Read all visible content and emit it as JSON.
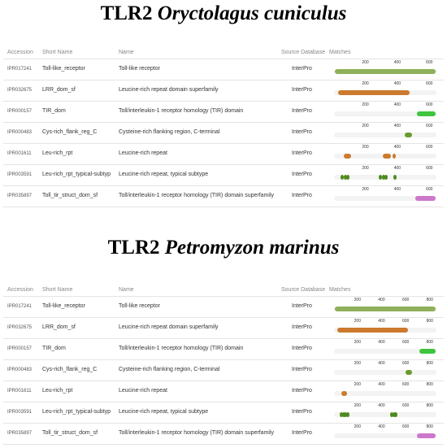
{
  "colors": {
    "olive": "#8fb05a",
    "orange": "#cc7a2e",
    "bright_green": "#3ec43e",
    "dark_green": "#6a9a2e",
    "leaf_green": "#4e8a1e",
    "magenta": "#cc77cc",
    "track": "#f3f3f3"
  },
  "header": {
    "accession": "Accession",
    "short_name": "Short Name",
    "name": "Name",
    "source_database": "Source Database",
    "matches": "Matches"
  },
  "panels": [
    {
      "title_gene": "TLR2",
      "title_species": "Oryctolagus cuniculus",
      "protein_length": 640,
      "tick_labels": [
        "200",
        "400",
        "600"
      ],
      "tick_values": [
        200,
        400,
        600
      ],
      "rows": [
        {
          "accession": "IPR017241",
          "short_name": "Toll-like_receptor",
          "name": "Toll-like receptor",
          "db": "InterPro",
          "color": "olive",
          "segments": [
            {
              "start": 5,
              "end": 635
            }
          ],
          "dots": []
        },
        {
          "accession": "IPR032675",
          "short_name": "LRR_dom_sf",
          "name": "Leucine-rich repeat domain superfamily",
          "db": "InterPro",
          "color": "orange",
          "segments": [
            {
              "start": 25,
              "end": 470
            }
          ],
          "dots": []
        },
        {
          "accession": "IPR000157",
          "short_name": "TIR_dom",
          "name": "Toll/interleukin-1 receptor homology (TIR) domain",
          "db": "InterPro",
          "color": "bright_green",
          "segments": [
            {
              "start": 520,
              "end": 635
            }
          ],
          "dots": []
        },
        {
          "accession": "IPR000483",
          "short_name": "Cys-rich_flank_reg_C",
          "name": "Cysteine-rich flanking region, C-terminal",
          "db": "InterPro",
          "color": "dark_green",
          "segments": [
            {
              "start": 440,
              "end": 490
            }
          ],
          "dots": []
        },
        {
          "accession": "IPR001611",
          "short_name": "Leu-rich_rpt",
          "name": "Leucine-rich repeat",
          "db": "InterPro",
          "color": "orange",
          "segments": [
            {
              "start": 60,
              "end": 105
            },
            {
              "start": 305,
              "end": 355
            }
          ],
          "dots": [
            {
              "at": 375
            }
          ]
        },
        {
          "accession": "IPR003591",
          "short_name": "Leu-rich_rpt_typical-subtyp",
          "name": "Leucine-rich repeat, typical subtype",
          "db": "InterPro",
          "color": "leaf_green",
          "segments": [],
          "dots": [
            {
              "at": 52
            },
            {
              "at": 70
            },
            {
              "at": 88
            },
            {
              "at": 290
            },
            {
              "at": 308
            },
            {
              "at": 326
            },
            {
              "at": 380
            }
          ]
        },
        {
          "accession": "IPR035897",
          "short_name": "Toll_tir_struct_dom_sf",
          "name": "Toll/interleukin-1 receptor homology (TIR) domain superfamily",
          "db": "InterPro",
          "color": "magenta",
          "segments": [
            {
              "start": 510,
              "end": 635
            }
          ],
          "dots": []
        }
      ]
    },
    {
      "title_gene": "TLR2",
      "title_species": "Petromyzon marinus",
      "protein_length": 850,
      "tick_labels": [
        "200",
        "400",
        "600",
        "800"
      ],
      "tick_values": [
        200,
        400,
        600,
        800
      ],
      "rows": [
        {
          "accession": "IPR017241",
          "short_name": "Toll-like_receptor",
          "name": "Toll-like receptor",
          "db": "InterPro",
          "color": "olive",
          "segments": [
            {
              "start": 5,
              "end": 845
            }
          ],
          "dots": []
        },
        {
          "accession": "IPR032675",
          "short_name": "LRR_dom_sf",
          "name": "Leucine-rich repeat domain superfamily",
          "db": "InterPro",
          "color": "orange",
          "segments": [
            {
              "start": 25,
              "end": 615
            }
          ],
          "dots": []
        },
        {
          "accession": "IPR000157",
          "short_name": "TIR_dom",
          "name": "Toll/interleukin-1 receptor homology (TIR) domain",
          "db": "InterPro",
          "color": "bright_green",
          "segments": [
            {
              "start": 710,
              "end": 845
            }
          ],
          "dots": []
        },
        {
          "accession": "IPR000483",
          "short_name": "Cys-rich_flank_reg_C",
          "name": "Cysteine-rich flanking region, C-terminal",
          "db": "InterPro",
          "color": "dark_green",
          "segments": [
            {
              "start": 595,
              "end": 650
            }
          ],
          "dots": []
        },
        {
          "accession": "IPR001611",
          "short_name": "Leu-rich_rpt",
          "name": "Leucine-rich repeat",
          "db": "InterPro",
          "color": "orange",
          "segments": [
            {
              "start": 60,
              "end": 105
            }
          ],
          "dots": []
        },
        {
          "accession": "IPR003591",
          "short_name": "Leu-rich_rpt_typical-subtyp",
          "name": "Leucine-rich repeat, typical subtype",
          "db": "InterPro",
          "color": "leaf_green",
          "segments": [],
          "dots": [
            {
              "at": 60
            },
            {
              "at": 78
            },
            {
              "at": 96
            },
            {
              "at": 114
            },
            {
              "at": 480
            },
            {
              "at": 498
            },
            {
              "at": 516
            }
          ]
        },
        {
          "accession": "IPR035897",
          "short_name": "Toll_tir_struct_dom_sf",
          "name": "Toll/interleukin-1 receptor homology (TIR) domain superfamily",
          "db": "InterPro",
          "color": "magenta",
          "segments": [
            {
              "start": 690,
              "end": 845
            }
          ],
          "dots": []
        }
      ]
    }
  ]
}
